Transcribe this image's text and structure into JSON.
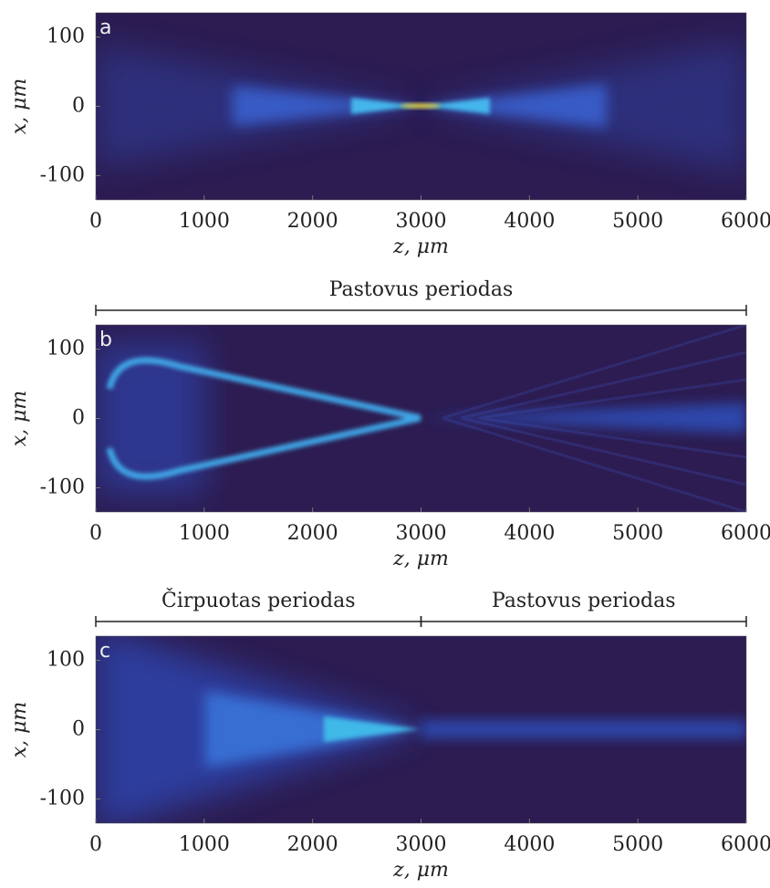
{
  "chart_data": [
    {
      "type": "heatmap",
      "panel": "a",
      "xlabel": "z, μm",
      "ylabel": "x, μm",
      "xlim": [
        0,
        6000
      ],
      "ylim": [
        -135,
        135
      ],
      "xticks": [
        0,
        1000,
        2000,
        3000,
        4000,
        5000,
        6000
      ],
      "yticks": [
        -100,
        0,
        100
      ]
    },
    {
      "type": "heatmap",
      "panel": "b",
      "xlabel": "z, μm",
      "ylabel": "x, μm",
      "xlim": [
        0,
        6000
      ],
      "ylim": [
        -135,
        135
      ],
      "xticks": [
        0,
        1000,
        2000,
        3000,
        4000,
        5000,
        6000
      ],
      "yticks": [
        -100,
        0,
        100
      ],
      "annotations": [
        {
          "text": "Pastovus periodas",
          "range": [
            0,
            6000
          ]
        }
      ]
    },
    {
      "type": "heatmap",
      "panel": "c",
      "xlabel": "z, μm",
      "ylabel": "x, μm",
      "xlim": [
        0,
        6000
      ],
      "ylim": [
        -135,
        135
      ],
      "xticks": [
        0,
        1000,
        2000,
        3000,
        4000,
        5000,
        6000
      ],
      "yticks": [
        -100,
        0,
        100
      ],
      "annotations": [
        {
          "text": "Čirpuotas periodas",
          "range": [
            0,
            3000
          ]
        },
        {
          "text": "Pastovus periodas",
          "range": [
            3000,
            6000
          ]
        }
      ]
    }
  ]
}
